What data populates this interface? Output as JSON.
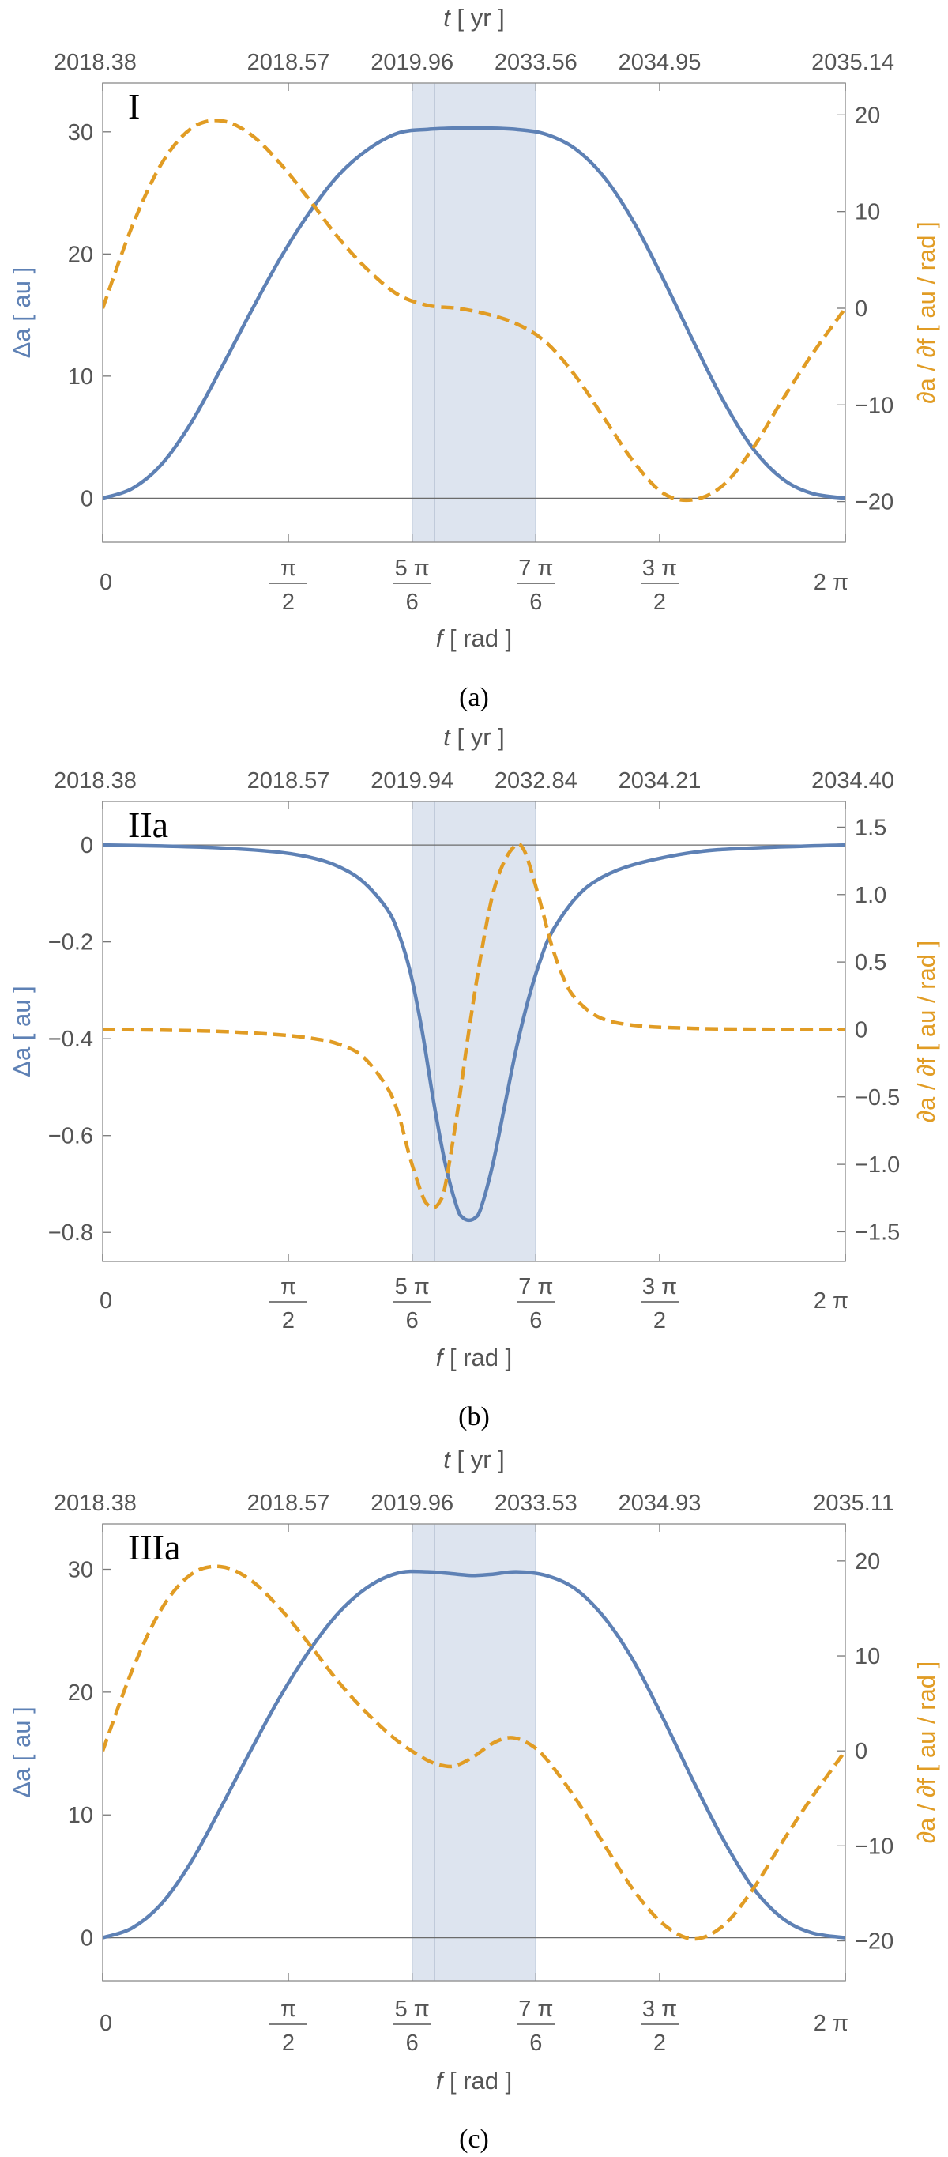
{
  "chart_data": [
    {
      "type": "line",
      "panel_label": "I",
      "caption": "(a)",
      "xlabel_var": "f",
      "xlabel_unit": "[ rad ]",
      "top_xlabel_var": "t",
      "top_xlabel_unit": "[ yr ]",
      "ylabel_left": "Δa [ au ]",
      "ylabel_right": "∂a / ∂f [ au / rad ]",
      "xlim": [
        0,
        6.2832
      ],
      "ylim_left": [
        -3.6,
        34
      ],
      "ylim_right": [
        -24.2,
        23.3
      ],
      "left_ticks": [
        "0",
        "10",
        "20",
        "30"
      ],
      "right_ticks": [
        "20",
        "10",
        "0",
        "−10",
        "−20"
      ],
      "top_ticks": [
        "2018.38",
        "2018.57",
        "2019.96",
        "2033.56",
        "2034.95",
        "2035.14"
      ],
      "bottom_ticks": [
        {
          "top": "0",
          "bottom": ""
        },
        {
          "top": "π",
          "bottom": "2"
        },
        {
          "top": "5 π",
          "bottom": "6"
        },
        {
          "top": "7 π",
          "bottom": "6"
        },
        {
          "top": "3 π",
          "bottom": "2"
        },
        {
          "top": "2 π",
          "bottom": ""
        }
      ],
      "shaded_region": [
        2.618,
        3.665
      ],
      "series": [
        {
          "axis": "left",
          "color": "#5e81b5",
          "style": "solid",
          "x": [
            0,
            0.25,
            0.5,
            0.75,
            1.0,
            1.25,
            1.5,
            1.75,
            2.0,
            2.25,
            2.5,
            2.75,
            3.0,
            3.25,
            3.5,
            3.75,
            4.0,
            4.25,
            4.5,
            4.75,
            5.0,
            5.25,
            5.5,
            5.75,
            6.0,
            6.2832
          ],
          "y": [
            0,
            0.8,
            2.8,
            6.2,
            10.6,
            15.2,
            19.6,
            23.4,
            26.5,
            28.6,
            29.9,
            30.2,
            30.3,
            30.3,
            30.2,
            29.8,
            28.6,
            26.2,
            22.5,
            17.8,
            12.8,
            8.0,
            4.1,
            1.6,
            0.4,
            0
          ]
        },
        {
          "axis": "right",
          "color": "#e19c24",
          "style": "dashed",
          "x": [
            0,
            0.25,
            0.5,
            0.75,
            1.0,
            1.25,
            1.5,
            1.75,
            2.0,
            2.25,
            2.5,
            2.75,
            3.0,
            3.25,
            3.5,
            3.75,
            4.0,
            4.25,
            4.5,
            4.75,
            5.0,
            5.25,
            5.5,
            5.75,
            6.0,
            6.2832
          ],
          "y": [
            0,
            8.5,
            15.0,
            18.6,
            19.4,
            18.0,
            15.0,
            11.2,
            7.2,
            3.9,
            1.4,
            0.3,
            0.0,
            -0.6,
            -1.6,
            -3.5,
            -7.0,
            -11.5,
            -16.0,
            -19.2,
            -19.8,
            -18.3,
            -14.5,
            -9.5,
            -4.8,
            0
          ]
        }
      ]
    },
    {
      "type": "line",
      "panel_label": "IIa",
      "caption": "(b)",
      "xlabel_var": "f",
      "xlabel_unit": "[ rad ]",
      "top_xlabel_var": "t",
      "top_xlabel_unit": "[ yr ]",
      "ylabel_left": "Δa [ au ]",
      "ylabel_right": "∂a / ∂f [ au / rad ]",
      "xlim": [
        0,
        6.2832
      ],
      "ylim_left": [
        -0.86,
        0.09
      ],
      "ylim_right": [
        -1.72,
        1.69
      ],
      "left_ticks": [
        "0",
        "−0.2",
        "−0.4",
        "−0.6",
        "−0.8"
      ],
      "right_ticks": [
        "1.5",
        "1.0",
        "0.5",
        "0",
        "−0.5",
        "−1.0",
        "−1.5"
      ],
      "top_ticks": [
        "2018.38",
        "2018.57",
        "2019.94",
        "2032.84",
        "2034.21",
        "2034.40"
      ],
      "bottom_ticks": [
        {
          "top": "0",
          "bottom": ""
        },
        {
          "top": "π",
          "bottom": "2"
        },
        {
          "top": "5 π",
          "bottom": "6"
        },
        {
          "top": "7 π",
          "bottom": "6"
        },
        {
          "top": "3 π",
          "bottom": "2"
        },
        {
          "top": "2 π",
          "bottom": ""
        }
      ],
      "shaded_region": [
        2.618,
        3.665
      ],
      "series": [
        {
          "axis": "left",
          "color": "#5e81b5",
          "style": "solid",
          "x": [
            0,
            0.5,
            1.0,
            1.5,
            1.8,
            2.0,
            2.2,
            2.4,
            2.5,
            2.6,
            2.7,
            2.8,
            2.9,
            3.0,
            3.05,
            3.1,
            3.15,
            3.2,
            3.3,
            3.4,
            3.5,
            3.6,
            3.7,
            3.8,
            4.0,
            4.2,
            4.5,
            5.0,
            5.5,
            6.2832
          ],
          "y": [
            0,
            -0.002,
            -0.006,
            -0.015,
            -0.028,
            -0.045,
            -0.075,
            -0.13,
            -0.18,
            -0.26,
            -0.38,
            -0.53,
            -0.66,
            -0.75,
            -0.77,
            -0.775,
            -0.77,
            -0.75,
            -0.66,
            -0.54,
            -0.42,
            -0.32,
            -0.24,
            -0.18,
            -0.11,
            -0.07,
            -0.04,
            -0.015,
            -0.006,
            0
          ]
        },
        {
          "axis": "right",
          "color": "#e19c24",
          "style": "dashed",
          "x": [
            0,
            0.5,
            1.0,
            1.5,
            1.8,
            2.0,
            2.2,
            2.4,
            2.5,
            2.6,
            2.7,
            2.75,
            2.8,
            2.85,
            2.9,
            3.0,
            3.1,
            3.2,
            3.3,
            3.4,
            3.5,
            3.55,
            3.6,
            3.7,
            3.8,
            3.9,
            4.0,
            4.2,
            4.5,
            5.0,
            5.5,
            6.2832
          ],
          "y": [
            0,
            -0.005,
            -0.015,
            -0.04,
            -0.07,
            -0.11,
            -0.2,
            -0.42,
            -0.62,
            -0.95,
            -1.22,
            -1.3,
            -1.32,
            -1.28,
            -1.15,
            -0.62,
            0.0,
            0.55,
            1.0,
            1.25,
            1.37,
            1.35,
            1.25,
            0.95,
            0.62,
            0.38,
            0.23,
            0.09,
            0.03,
            0.008,
            0.002,
            0
          ]
        }
      ]
    },
    {
      "type": "line",
      "panel_label": "IIIa",
      "caption": "(c)",
      "xlabel_var": "f",
      "xlabel_unit": "[ rad ]",
      "top_xlabel_var": "t",
      "top_xlabel_unit": "[ yr ]",
      "ylabel_left": "Δa [ au ]",
      "ylabel_right": "∂a / ∂f [ au / rad ]",
      "xlim": [
        0,
        6.2832
      ],
      "ylim_left": [
        -3.5,
        33.7
      ],
      "ylim_right": [
        -24.2,
        23.9
      ],
      "left_ticks": [
        "0",
        "10",
        "20",
        "30"
      ],
      "right_ticks": [
        "20",
        "10",
        "0",
        "−10",
        "−20"
      ],
      "top_ticks": [
        "2018.38",
        "2018.57",
        "2019.96",
        "2033.53",
        "2034.93",
        "2035.11"
      ],
      "bottom_ticks": [
        {
          "top": "0",
          "bottom": ""
        },
        {
          "top": "π",
          "bottom": "2"
        },
        {
          "top": "5 π",
          "bottom": "6"
        },
        {
          "top": "7 π",
          "bottom": "6"
        },
        {
          "top": "3 π",
          "bottom": "2"
        },
        {
          "top": "2 π",
          "bottom": ""
        }
      ],
      "shaded_region": [
        2.618,
        3.665
      ],
      "series": [
        {
          "axis": "left",
          "color": "#5e81b5",
          "style": "solid",
          "x": [
            0,
            0.25,
            0.5,
            0.75,
            1.0,
            1.25,
            1.5,
            1.75,
            2.0,
            2.25,
            2.5,
            2.75,
            3.0,
            3.14,
            3.3,
            3.5,
            3.75,
            4.0,
            4.25,
            4.5,
            4.75,
            5.0,
            5.25,
            5.5,
            5.75,
            6.0,
            6.2832
          ],
          "y": [
            0,
            0.8,
            2.8,
            6.2,
            10.6,
            15.2,
            19.6,
            23.4,
            26.5,
            28.6,
            29.7,
            29.8,
            29.6,
            29.5,
            29.6,
            29.8,
            29.5,
            28.4,
            26.0,
            22.4,
            17.7,
            12.7,
            8.0,
            4.1,
            1.6,
            0.4,
            0
          ]
        },
        {
          "axis": "right",
          "color": "#e19c24",
          "style": "dashed",
          "x": [
            0,
            0.25,
            0.5,
            0.75,
            1.0,
            1.25,
            1.5,
            1.75,
            2.0,
            2.25,
            2.5,
            2.75,
            2.9,
            3.0,
            3.14,
            3.3,
            3.45,
            3.6,
            3.75,
            4.0,
            4.25,
            4.5,
            4.75,
            5.0,
            5.25,
            5.5,
            5.75,
            6.0,
            6.2832
          ],
          "y": [
            0,
            8.5,
            15.0,
            18.6,
            19.4,
            18.0,
            15.0,
            11.2,
            7.2,
            3.8,
            1.0,
            -1.0,
            -1.6,
            -1.5,
            -0.6,
            0.8,
            1.4,
            0.8,
            -0.8,
            -5.0,
            -10.0,
            -14.8,
            -18.3,
            -19.8,
            -18.4,
            -14.6,
            -9.6,
            -4.9,
            0
          ]
        }
      ]
    }
  ]
}
